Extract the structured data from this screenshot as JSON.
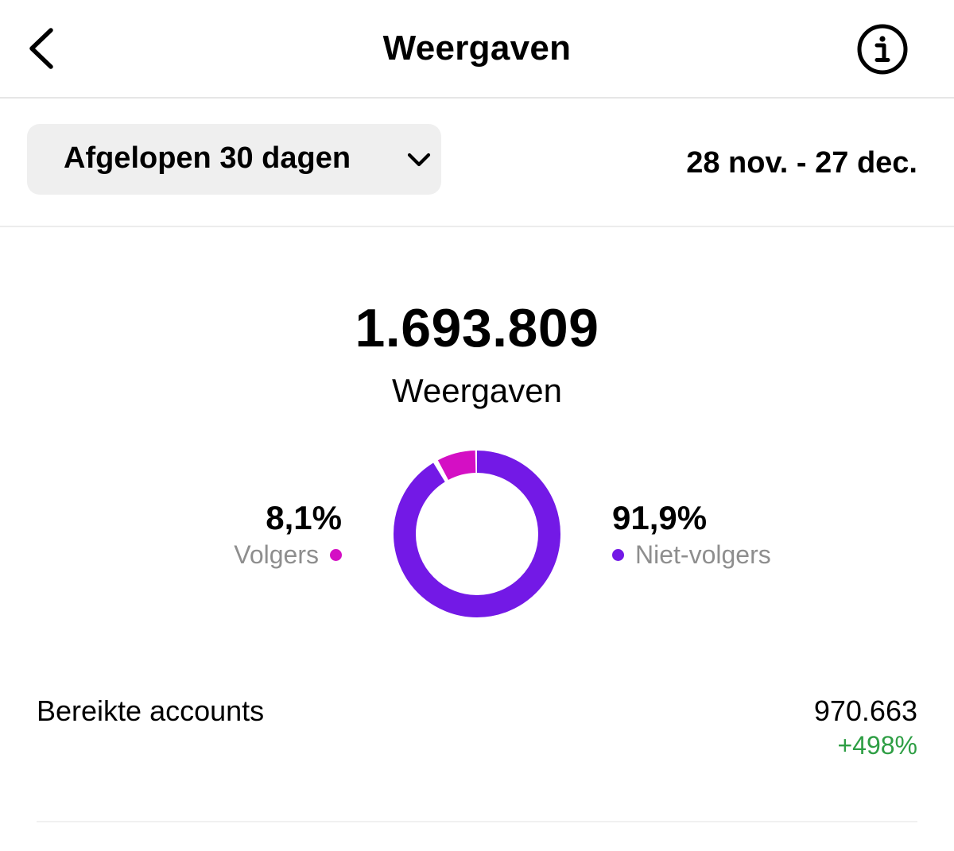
{
  "header": {
    "title": "Weergaven",
    "back_icon": "chevron-left-icon",
    "info_icon": "info-circle-icon"
  },
  "filter": {
    "period_label": "Afgelopen 30 dagen",
    "period_icon": "chevron-down-icon",
    "date_range": "28 nov. - 27 dec."
  },
  "summary": {
    "total": "1.693.809",
    "label": "Weergaven"
  },
  "breakdown": {
    "followers": {
      "percent_text": "8,1%",
      "label": "Volgers",
      "value": 8.1,
      "color": "#d40fc4"
    },
    "non_followers": {
      "percent_text": "91,9%",
      "label": "Niet-volgers",
      "value": 91.9,
      "color": "#7319e6"
    }
  },
  "metrics": {
    "reached_label": "Bereikte accounts",
    "reached_value": "970.663",
    "reached_change": "+498%",
    "change_color": "#2e9e44"
  }
}
